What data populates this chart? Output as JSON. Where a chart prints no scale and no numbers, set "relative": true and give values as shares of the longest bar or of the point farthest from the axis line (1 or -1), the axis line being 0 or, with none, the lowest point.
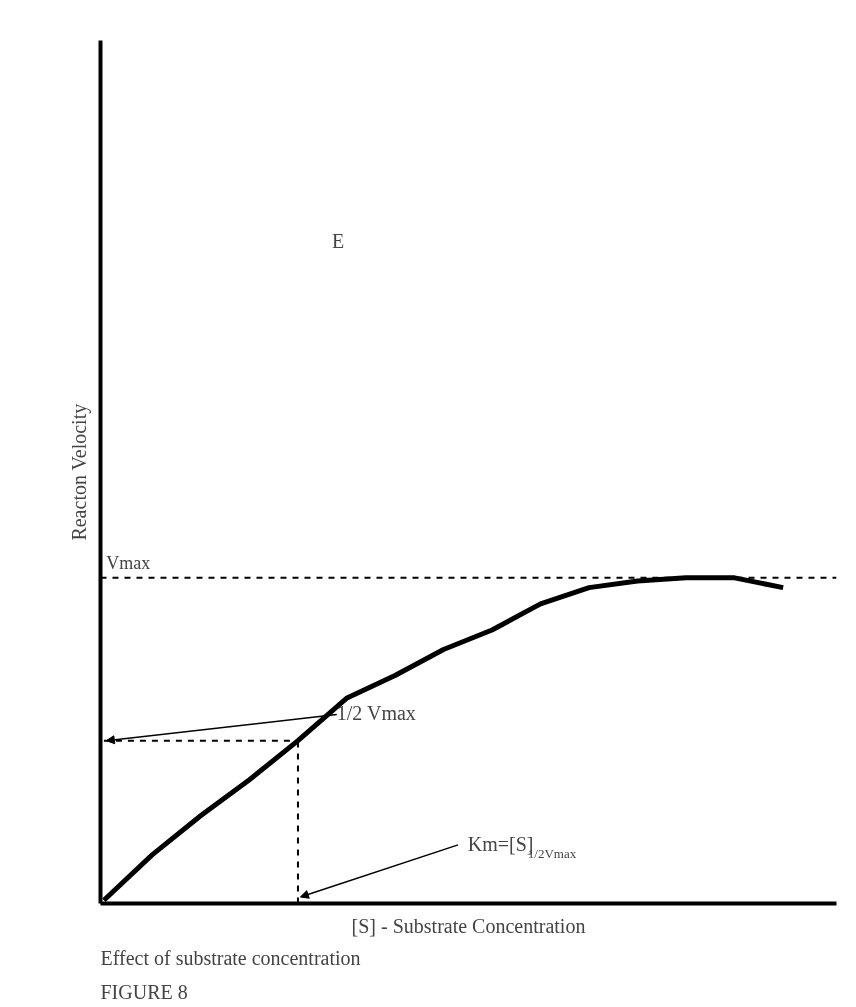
{
  "chart_data": {
    "type": "line",
    "title": "FIGURE 8",
    "subtitle": "Effect of substrate concentration",
    "xlabel": "[S] - Substrate Concentration",
    "ylabel": "Reacton Velocity",
    "relative": true,
    "categories": [
      null,
      null,
      null,
      null,
      null,
      null,
      null,
      null,
      null,
      null,
      null,
      null,
      null,
      null,
      null
    ],
    "series": [
      {
        "color": "#000000",
        "values": [
          0.01,
          0.15,
          0.27,
          0.38,
          0.5,
          0.63,
          0.7,
          0.78,
          0.84,
          0.92,
          0.97,
          0.99,
          1.0,
          1.0,
          0.97
        ]
      }
    ],
    "ref_lines": [
      {
        "axis": "y",
        "value": 1,
        "label": "Vmax",
        "line_style": "dashed",
        "color": "#000000"
      },
      {
        "axis": "y",
        "value": 0.5,
        "line_style": "dashed",
        "color": "#000000"
      }
    ],
    "annotations": [
      "E",
      "1/2 Vmax",
      "Km=[S]$_{1/2Vmax}$"
    ],
    "marker": "none",
    "grid": false,
    "tick_labels": false
  }
}
